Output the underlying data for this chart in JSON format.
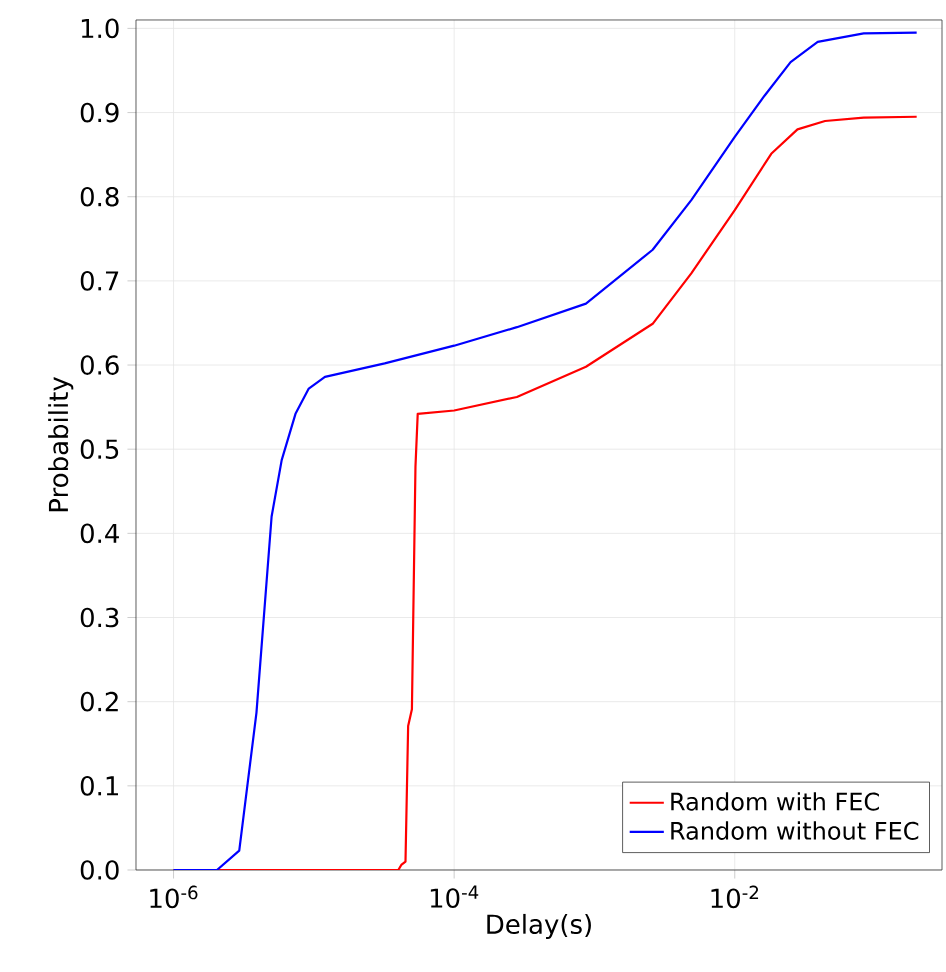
{
  "chart_data": {
    "type": "line",
    "xlabel": "Delay(s)",
    "ylabel": "Probability",
    "log": "x",
    "grid": true,
    "legend": "bottom right",
    "line_style": "solid",
    "marker": "none",
    "xlim": [
      5.4e-07,
      0.3
    ],
    "ylim": [
      0,
      1.01
    ],
    "xticks": [
      {
        "value": 1e-06,
        "label": "10$^{-6}$"
      },
      {
        "value": 0.0001,
        "label": "10$^{-4}$"
      },
      {
        "value": 0.01,
        "label": "10$^{-2}$"
      }
    ],
    "yticks": [
      {
        "value": 0,
        "label": "0.0"
      },
      {
        "value": 0.1,
        "label": "0.1"
      },
      {
        "value": 0.2,
        "label": "0.2"
      },
      {
        "value": 0.3,
        "label": "0.3"
      },
      {
        "value": 0.4,
        "label": "0.4"
      },
      {
        "value": 0.5,
        "label": "0.5"
      },
      {
        "value": 0.6,
        "label": "0.6"
      },
      {
        "value": 0.7,
        "label": "0.7"
      },
      {
        "value": 0.8,
        "label": "0.8"
      },
      {
        "value": 0.9,
        "label": "0.9"
      },
      {
        "value": 1.0,
        "label": "1.0"
      }
    ],
    "series": [
      {
        "name": "Random with FEC",
        "color": "#ff0000",
        "x": [
          1e-06,
          4e-05,
          4.2e-05,
          4.5e-05,
          4.7e-05,
          5e-05,
          5.3e-05,
          5.5e-05,
          0.0001,
          0.00028,
          0.00087,
          0.0026,
          0.0049,
          0.01,
          0.0182,
          0.028,
          0.044,
          0.083,
          0.198
        ],
        "values": [
          0,
          0,
          0.006,
          0.01,
          0.171,
          0.191,
          0.479,
          0.542,
          0.546,
          0.562,
          0.598,
          0.649,
          0.709,
          0.784,
          0.851,
          0.88,
          0.89,
          0.894,
          0.895
        ]
      },
      {
        "name": "Random without FEC",
        "color": "#0000ff",
        "x": [
          1e-06,
          2.04e-06,
          2.94e-06,
          3.9e-06,
          5e-06,
          5.9e-06,
          7.4e-06,
          9.2e-06,
          1.2e-05,
          3.2e-05,
          0.0001,
          0.00028,
          0.00087,
          0.0026,
          0.0049,
          0.01,
          0.0163,
          0.025,
          0.039,
          0.083,
          0.198
        ],
        "values": [
          0,
          0,
          0.023,
          0.187,
          0.42,
          0.487,
          0.542,
          0.572,
          0.586,
          0.602,
          0.623,
          0.645,
          0.673,
          0.737,
          0.796,
          0.871,
          0.92,
          0.96,
          0.984,
          0.994,
          0.995
        ]
      }
    ]
  }
}
